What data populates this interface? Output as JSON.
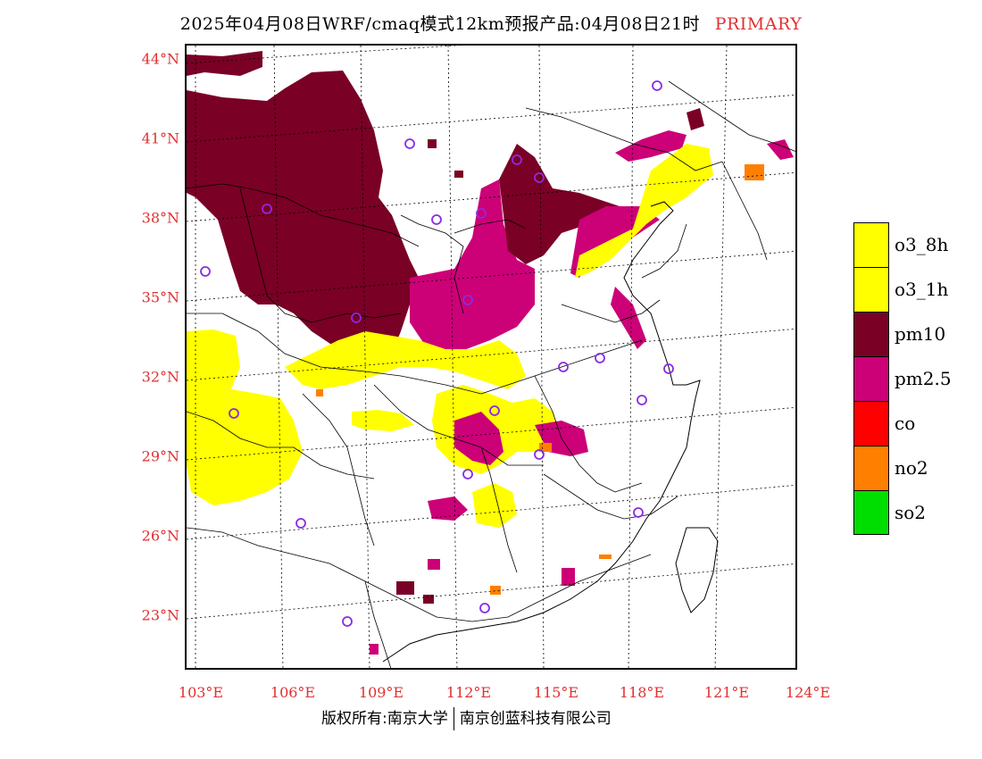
{
  "title": {
    "main": "2025年04月08日WRF/cmaq模式12km预报产品:04月08日21时",
    "tag": "PRIMARY"
  },
  "axes": {
    "lat_labels": [
      "44°N",
      "41°N",
      "38°N",
      "35°N",
      "32°N",
      "29°N",
      "26°N",
      "23°N"
    ],
    "lon_labels": [
      "103°E",
      "106°E",
      "109°E",
      "112°E",
      "115°E",
      "118°E",
      "121°E",
      "124°E"
    ]
  },
  "legend": {
    "items": [
      {
        "label": "o3_8h",
        "color": "#ffff00"
      },
      {
        "label": "o3_1h",
        "color": "#ffff00"
      },
      {
        "label": "pm10",
        "color": "#7a0026"
      },
      {
        "label": "pm2.5",
        "color": "#cc0077"
      },
      {
        "label": "co",
        "color": "#ff0000"
      },
      {
        "label": "no2",
        "color": "#ff7f00"
      },
      {
        "label": "so2",
        "color": "#00dd00"
      }
    ]
  },
  "colors": {
    "o3": "#ffff00",
    "pm10": "#7a0026",
    "pm25": "#cc0077",
    "co": "#ff0000",
    "no2": "#ff7f00",
    "so2": "#00dd00",
    "station": "#8a2be2",
    "label": "#e03030"
  },
  "footer": {
    "left": "版权所有:南京大学",
    "right": "南京创蓝科技有限公司"
  }
}
